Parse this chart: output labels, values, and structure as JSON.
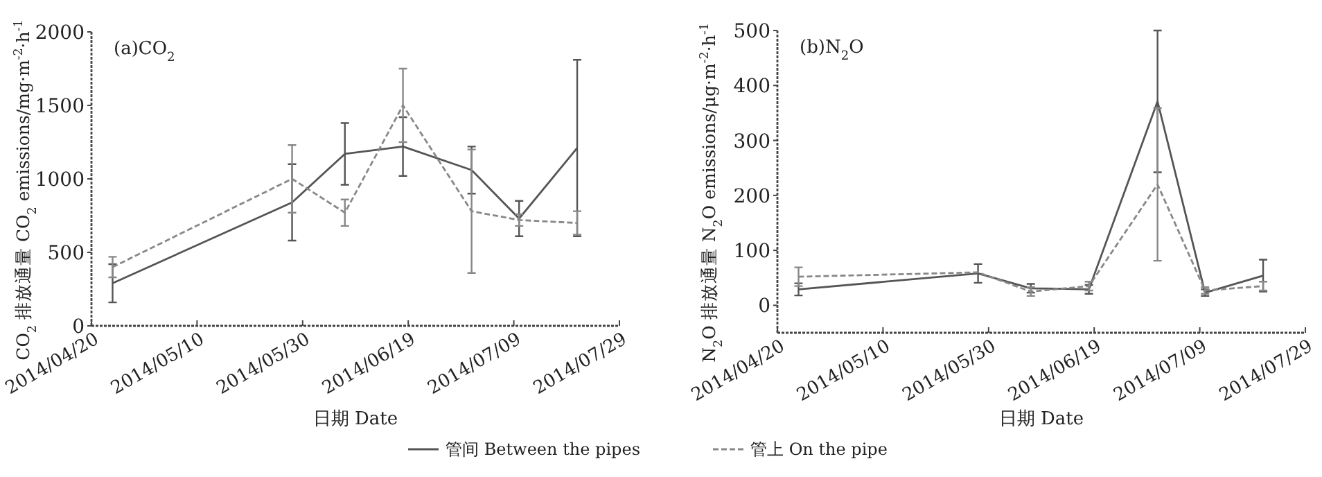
{
  "chart_data": [
    {
      "type": "line",
      "title": "(a)CO$_{2}$",
      "xlabel": "日期 Date",
      "ylabel": "CO$_{2}$ 排放通量 CO$_{2}$ emissions/mg·m$^{-2}$·h$^{-1}$",
      "xlim": [
        "2014-04-20",
        "2014-07-29"
      ],
      "xticks": [
        {
          "value": "2014-04-20",
          "label": "2014/04/20"
        },
        {
          "value": "2014-05-10",
          "label": "2014/05/10"
        },
        {
          "value": "2014-05-30",
          "label": "2014/05/30"
        },
        {
          "value": "2014-06-19",
          "label": "2014/06/19"
        },
        {
          "value": "2014-07-09",
          "label": "2014/07/09"
        },
        {
          "value": "2014-07-29",
          "label": "2014/07/29"
        }
      ],
      "ylim": [
        0,
        2000
      ],
      "yticks": [
        0,
        500,
        1000,
        1500,
        2000
      ],
      "grid": false,
      "legend": "bottom",
      "x": [
        "2014-04-24",
        "2014-05-28",
        "2014-06-07",
        "2014-06-18",
        "2014-07-01",
        "2014-07-10",
        "2014-07-21"
      ],
      "series": [
        {
          "name": "管间 Between the pipes",
          "color": "#555555",
          "line_style": "solid",
          "values": [
            290,
            840,
            1170,
            1220,
            1060,
            730,
            1210
          ],
          "errors": [
            130,
            260,
            210,
            200,
            160,
            120,
            600
          ]
        },
        {
          "name": "管上 On the pipe",
          "color": "#888888",
          "line_style": "dashed",
          "values": [
            400,
            1000,
            770,
            1500,
            780,
            720,
            700
          ],
          "errors": [
            70,
            230,
            90,
            250,
            420,
            40,
            80
          ]
        }
      ]
    },
    {
      "type": "line",
      "title": "(b)N$_{2}$O",
      "xlabel": "日期 Date",
      "ylabel": "N$_{2}$O 排放通量 N$_{2}$O emissions/μg·m$^{-2}$·h$^{-1}$",
      "xlim": [
        "2014-04-20",
        "2014-07-29"
      ],
      "xticks": [
        {
          "value": "2014-04-20",
          "label": "2014/04/20"
        },
        {
          "value": "2014-05-10",
          "label": "2014/05/10"
        },
        {
          "value": "2014-05-30",
          "label": "2014/05/30"
        },
        {
          "value": "2014-06-19",
          "label": "2014/06/19"
        },
        {
          "value": "2014-07-09",
          "label": "2014/07/09"
        },
        {
          "value": "2014-07-29",
          "label": "2014/07/29"
        }
      ],
      "ylim": [
        -50,
        500
      ],
      "yticks": [
        0,
        100,
        200,
        300,
        400,
        500
      ],
      "grid": false,
      "x": [
        "2014-04-24",
        "2014-05-28",
        "2014-06-07",
        "2014-06-18",
        "2014-07-01",
        "2014-07-10",
        "2014-07-21"
      ],
      "series": [
        {
          "color": "#555555",
          "line_style": "solid",
          "values": [
            29,
            58,
            31,
            29,
            371,
            23,
            54
          ],
          "errors": [
            11,
            17,
            8,
            8,
            129,
            6,
            29
          ]
        },
        {
          "color": "#888888",
          "line_style": "dashed",
          "values": [
            52,
            60,
            25,
            35,
            220,
            27,
            35
          ],
          "errors": [
            17,
            null,
            8,
            8,
            139,
            6,
            8
          ]
        }
      ]
    }
  ]
}
